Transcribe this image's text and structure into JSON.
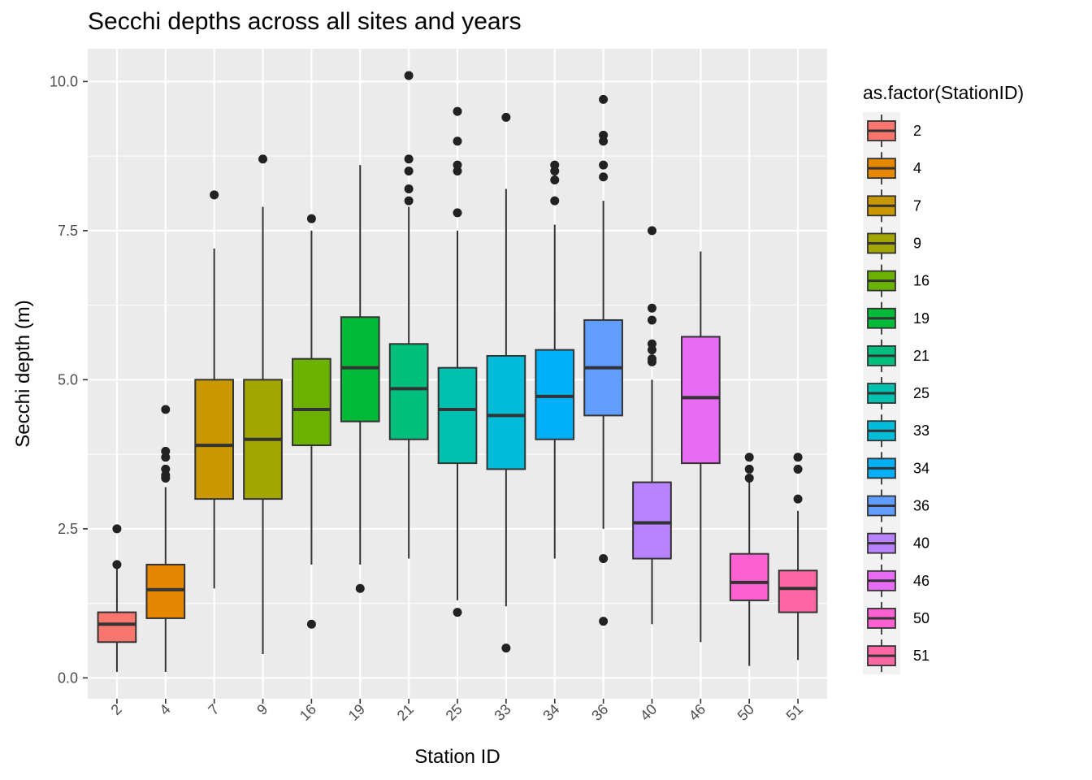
{
  "chart_data": {
    "type": "box",
    "title": "Secchi depths across all sites and years",
    "xlabel": "Station ID",
    "ylabel": "Secchi depth (m)",
    "ylim": [
      -0.35,
      10.55
    ],
    "yticks": [
      0.0,
      2.5,
      5.0,
      7.5,
      10.0
    ],
    "ytick_labels": [
      "0.0",
      "2.5",
      "5.0",
      "7.5",
      "10.0"
    ],
    "grid": true,
    "legend": {
      "title": "as.factor(StationID)",
      "position": "right"
    },
    "categories": [
      "2",
      "4",
      "7",
      "9",
      "16",
      "19",
      "21",
      "25",
      "33",
      "34",
      "36",
      "40",
      "46",
      "50",
      "51"
    ],
    "colors": [
      "#F8766D",
      "#E58700",
      "#C99800",
      "#A3A500",
      "#6BB100",
      "#00BA38",
      "#00BF7D",
      "#00C0AF",
      "#00BCD8",
      "#00B0F6",
      "#619CFF",
      "#B983FF",
      "#E76BF3",
      "#FD61D1",
      "#FF67A4"
    ],
    "series": [
      {
        "category": "2",
        "whisker_low": 0.1,
        "q1": 0.6,
        "median": 0.9,
        "q3": 1.1,
        "whisker_high": 1.85,
        "outliers": [
          1.9,
          2.5
        ]
      },
      {
        "category": "4",
        "whisker_low": 0.1,
        "q1": 1.0,
        "median": 1.48,
        "q3": 1.9,
        "whisker_high": 3.2,
        "outliers": [
          3.35,
          3.4,
          3.5,
          3.7,
          3.8,
          4.5
        ]
      },
      {
        "category": "7",
        "whisker_low": 1.5,
        "q1": 3.0,
        "median": 3.9,
        "q3": 5.0,
        "whisker_high": 7.2,
        "outliers": [
          8.1
        ]
      },
      {
        "category": "9",
        "whisker_low": 0.4,
        "q1": 3.0,
        "median": 4.0,
        "q3": 5.0,
        "whisker_high": 7.9,
        "outliers": [
          8.7
        ]
      },
      {
        "category": "16",
        "whisker_low": 1.9,
        "q1": 3.9,
        "median": 4.5,
        "q3": 5.35,
        "whisker_high": 7.5,
        "outliers": [
          0.9,
          7.7
        ]
      },
      {
        "category": "19",
        "whisker_low": 1.9,
        "q1": 4.3,
        "median": 5.2,
        "q3": 6.05,
        "whisker_high": 8.6,
        "outliers": [
          1.5
        ]
      },
      {
        "category": "21",
        "whisker_low": 2.0,
        "q1": 4.0,
        "median": 4.85,
        "q3": 5.6,
        "whisker_high": 7.9,
        "outliers": [
          8.0,
          8.2,
          8.5,
          8.7,
          10.1
        ]
      },
      {
        "category": "25",
        "whisker_low": 1.3,
        "q1": 3.6,
        "median": 4.5,
        "q3": 5.2,
        "whisker_high": 7.5,
        "outliers": [
          1.1,
          7.8,
          8.5,
          8.6,
          9.0,
          9.5
        ]
      },
      {
        "category": "33",
        "whisker_low": 1.2,
        "q1": 3.5,
        "median": 4.4,
        "q3": 5.4,
        "whisker_high": 8.2,
        "outliers": [
          0.5,
          9.4
        ]
      },
      {
        "category": "34",
        "whisker_low": 2.0,
        "q1": 4.0,
        "median": 4.72,
        "q3": 5.5,
        "whisker_high": 7.6,
        "outliers": [
          8.0,
          8.35,
          8.5,
          8.6
        ]
      },
      {
        "category": "36",
        "whisker_low": 2.5,
        "q1": 4.4,
        "median": 5.2,
        "q3": 6.0,
        "whisker_high": 8.0,
        "outliers": [
          0.95,
          2.0,
          8.4,
          8.6,
          9.0,
          9.1,
          9.7
        ]
      },
      {
        "category": "40",
        "whisker_low": 0.9,
        "q1": 2.0,
        "median": 2.6,
        "q3": 3.28,
        "whisker_high": 5.0,
        "outliers": [
          5.3,
          5.35,
          5.5,
          5.6,
          6.0,
          6.2,
          7.5
        ]
      },
      {
        "category": "46",
        "whisker_low": 0.6,
        "q1": 3.6,
        "median": 4.7,
        "q3": 5.72,
        "whisker_high": 7.15,
        "outliers": []
      },
      {
        "category": "50",
        "whisker_low": 0.2,
        "q1": 1.3,
        "median": 1.6,
        "q3": 2.08,
        "whisker_high": 3.3,
        "outliers": [
          3.35,
          3.5,
          3.7
        ]
      },
      {
        "category": "51",
        "whisker_low": 0.3,
        "q1": 1.1,
        "median": 1.5,
        "q3": 1.8,
        "whisker_high": 2.8,
        "outliers": [
          3.0,
          3.5,
          3.7
        ]
      }
    ]
  }
}
